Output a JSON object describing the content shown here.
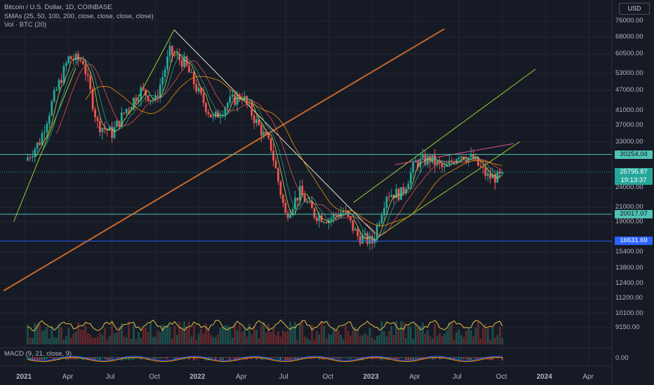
{
  "legend": {
    "title": "Bitcoin / U.S. Dollar, 1D, COINBASE",
    "sma": "SMAs (25, 50, 100, 200, close, close, close, close)",
    "vol": "Vol · BTC (20)",
    "macd": "MACD (9, 21, close, 9)"
  },
  "currency_button": "USD",
  "colors": {
    "background": "#161a25",
    "grid": "#232733",
    "up": "#26a69a",
    "down": "#ef5350",
    "hline_teal": "#4fc3b4",
    "hline_blue": "#2962ff",
    "trend_orange": "#c7682a",
    "channel_green": "#9ccc31",
    "trend_white": "#e8e6c8",
    "trend_pink": "#e0528a"
  },
  "chart_data": {
    "type": "candlestick",
    "symbol": "Bitcoin / U.S. Dollar",
    "interval": "1D",
    "exchange": "COINBASE",
    "currency": "USD",
    "y_scale": "log",
    "y_ticks": [
      "76000.00",
      "68000.00",
      "60500.00",
      "53000.00",
      "47000.00",
      "41000.00",
      "37000.00",
      "33000.00",
      "30254.04",
      "25795.87",
      "24000.00",
      "21000.00",
      "20017.07",
      "19000.00",
      "16631.69",
      "15400.00",
      "13800.00",
      "12400.00",
      "11200.00",
      "10100.00",
      "9150.00"
    ],
    "x_ticks": [
      "2021",
      "Apr",
      "Jul",
      "Oct",
      "2022",
      "Apr",
      "Jul",
      "Oct",
      "2023",
      "Apr",
      "Jul",
      "Oct",
      "2024",
      "Apr"
    ],
    "monthly_closes": [
      {
        "month": "2021-01",
        "close": 33100
      },
      {
        "month": "2021-02",
        "close": 45200
      },
      {
        "month": "2021-03",
        "close": 58800
      },
      {
        "month": "2021-04",
        "close": 57700
      },
      {
        "month": "2021-05",
        "close": 37300
      },
      {
        "month": "2021-06",
        "close": 35000
      },
      {
        "month": "2021-07",
        "close": 41500
      },
      {
        "month": "2021-08",
        "close": 47100
      },
      {
        "month": "2021-09",
        "close": 43800
      },
      {
        "month": "2021-10",
        "close": 61300
      },
      {
        "month": "2021-11",
        "close": 57000
      },
      {
        "month": "2021-12",
        "close": 46200
      },
      {
        "month": "2022-01",
        "close": 38500
      },
      {
        "month": "2022-02",
        "close": 43200
      },
      {
        "month": "2022-03",
        "close": 45500
      },
      {
        "month": "2022-04",
        "close": 37700
      },
      {
        "month": "2022-05",
        "close": 31800
      },
      {
        "month": "2022-06",
        "close": 19900
      },
      {
        "month": "2022-07",
        "close": 23300
      },
      {
        "month": "2022-08",
        "close": 20000
      },
      {
        "month": "2022-09",
        "close": 19400
      },
      {
        "month": "2022-10",
        "close": 20500
      },
      {
        "month": "2022-11",
        "close": 17200
      },
      {
        "month": "2022-12",
        "close": 16500
      },
      {
        "month": "2023-01",
        "close": 23100
      },
      {
        "month": "2023-02",
        "close": 23100
      },
      {
        "month": "2023-03",
        "close": 28500
      },
      {
        "month": "2023-04",
        "close": 29300
      },
      {
        "month": "2023-05",
        "close": 27200
      },
      {
        "month": "2023-06",
        "close": 30500
      },
      {
        "month": "2023-07",
        "close": 29200
      },
      {
        "month": "2023-08",
        "close": 25900
      },
      {
        "month": "2023-09",
        "close": 25796
      }
    ],
    "price_levels": [
      {
        "label": "30254.04",
        "value": 30254.04,
        "color": "#4fc3b4"
      },
      {
        "label": "20017.07",
        "value": 20017.07,
        "color": "#4fc3b4"
      },
      {
        "label": "16631.69",
        "value": 16631.69,
        "color": "#2962ff"
      }
    ],
    "last_price": {
      "label": "25795.87",
      "countdown": "19:13:37"
    },
    "panes": [
      "price",
      "volume",
      "macd"
    ],
    "macd_tick": "0.00",
    "grid": true
  }
}
